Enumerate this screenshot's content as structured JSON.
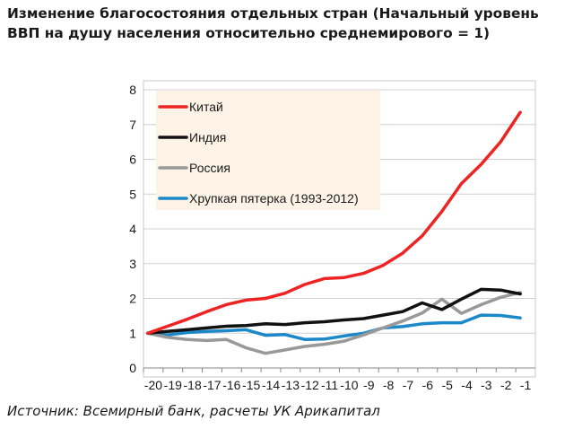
{
  "title_lines": [
    "Изменение благосостояния отдельных стран (Начальный уровень",
    "ВВП на душу населения относительно среднемирового = 1)"
  ],
  "source": "Источник: Всемирный банк, расчеты УК Арикапитал",
  "chart_data": {
    "type": "line",
    "title": "Изменение благосостояния отдельных стран (Начальный уровень ВВП на душу населения относительно среднемирового = 1)",
    "xlabel": "",
    "ylabel": "",
    "categories": [
      "-20",
      "-19",
      "-18",
      "-17",
      "-16",
      "-15",
      "-14",
      "-13",
      "-12",
      "-11",
      "-10",
      "-9",
      "-8",
      "-7",
      "-6",
      "-5",
      "-4",
      "-3",
      "-2",
      "-1"
    ],
    "ylim": [
      0,
      8
    ],
    "yticks": [
      0,
      1,
      2,
      3,
      4,
      5,
      6,
      7,
      8
    ],
    "grid": "horizontal",
    "legend_position": "top-left",
    "legend_background": "#fdf3e6",
    "series": [
      {
        "name": "Китай",
        "color": "#ee2424",
        "values": [
          1.0,
          1.2,
          1.4,
          1.62,
          1.82,
          1.95,
          2.0,
          2.15,
          2.4,
          2.57,
          2.6,
          2.72,
          2.95,
          3.3,
          3.8,
          4.5,
          5.3,
          5.85,
          6.5,
          7.35
        ]
      },
      {
        "name": "Индия",
        "color": "#111111",
        "values": [
          1.0,
          1.05,
          1.1,
          1.15,
          1.2,
          1.22,
          1.27,
          1.25,
          1.3,
          1.33,
          1.38,
          1.42,
          1.52,
          1.62,
          1.87,
          1.68,
          1.98,
          2.26,
          2.24,
          2.13
        ]
      },
      {
        "name": "Россия",
        "color": "#999999",
        "values": [
          1.0,
          0.88,
          0.82,
          0.79,
          0.82,
          0.58,
          0.42,
          0.52,
          0.62,
          0.68,
          0.77,
          0.95,
          1.15,
          1.35,
          1.58,
          1.98,
          1.57,
          1.82,
          2.03,
          2.17
        ]
      },
      {
        "name": "Хрупкая пятерка (1993-2012)",
        "color": "#1a88c9",
        "values": [
          1.0,
          0.95,
          1.02,
          1.05,
          1.07,
          1.1,
          0.94,
          0.96,
          0.82,
          0.83,
          0.92,
          1.0,
          1.15,
          1.19,
          1.27,
          1.3,
          1.3,
          1.52,
          1.51,
          1.44
        ]
      }
    ]
  }
}
